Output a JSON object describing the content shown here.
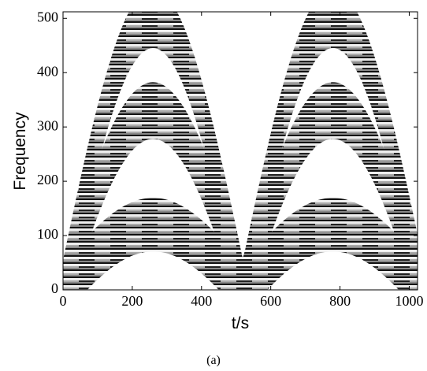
{
  "chart_data": {
    "type": "image",
    "xlabel": "t/s",
    "ylabel": "Frequency",
    "caption": "(a)",
    "xlim": [
      0,
      1024
    ],
    "ylim": [
      0,
      512
    ],
    "xticks": [
      0,
      200,
      400,
      600,
      800,
      1000
    ],
    "yticks": [
      0,
      100,
      200,
      300,
      400,
      500
    ]
  }
}
